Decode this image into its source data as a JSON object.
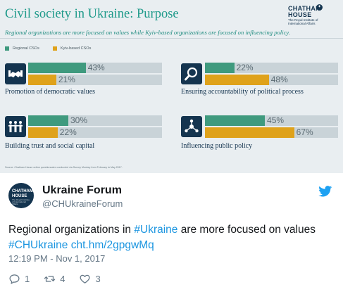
{
  "infographic": {
    "title": "Civil society in Ukraine: Purpose",
    "subtitle": "Regional organizations are more focused on values while Kyiv-based organizations are focused on influencing policy.",
    "logo": {
      "line1": "CHATHAM",
      "line2": "HOUSE",
      "line3": "The Royal Institute of International Affairs"
    },
    "legend": {
      "regional": "Regional CSOs",
      "kyiv": "Kyiv-based CSOs"
    },
    "source": "Source: Chatham House online questionnaire conducted via Survey Monkey from February to May 2017.",
    "colors": {
      "regional": "#3f9a7e",
      "kyiv": "#dfa21b",
      "track": "#c9d3d8",
      "icon_bg": "#14344f",
      "title": "#1e9a8a"
    }
  },
  "chart_data": {
    "type": "bar",
    "categories": [
      "Promotion of democratic values",
      "Ensuring accountability of political process",
      "Building trust and social capital",
      "Influencing public policy"
    ],
    "series": [
      {
        "name": "Regional CSOs",
        "values": [
          43,
          22,
          30,
          45
        ]
      },
      {
        "name": "Kyiv-based CSOs",
        "values": [
          21,
          48,
          22,
          67
        ]
      }
    ],
    "value_labels": {
      "regional": [
        "43%",
        "22%",
        "30%",
        "45%"
      ],
      "kyiv": [
        "21%",
        "48%",
        "22%",
        "67%"
      ]
    },
    "icons": [
      "handshake-icon",
      "magnifier-icon",
      "people-icon",
      "network-icon"
    ],
    "ylim": [
      0,
      100
    ]
  },
  "tweet": {
    "avatar": {
      "line1": "CHATHAM",
      "line2": "HOUSE",
      "line3": "The Royal Institute of International Affairs"
    },
    "display_name": "Ukraine Forum",
    "handle": "@CHUkraineForum",
    "text_part1": "Regional organizations in ",
    "hashtag1": "#Ukraine",
    "text_part2": " are more focused on values",
    "hashtag2": "#CHUkraine",
    "link": "cht.hm/2gpgwMq",
    "timestamp": "12:19 PM - Nov 1, 2017",
    "replies": "1",
    "retweets": "4",
    "likes": "3",
    "colors": {
      "link": "#1b95e0",
      "muted": "#657786",
      "text": "#14171a"
    }
  }
}
